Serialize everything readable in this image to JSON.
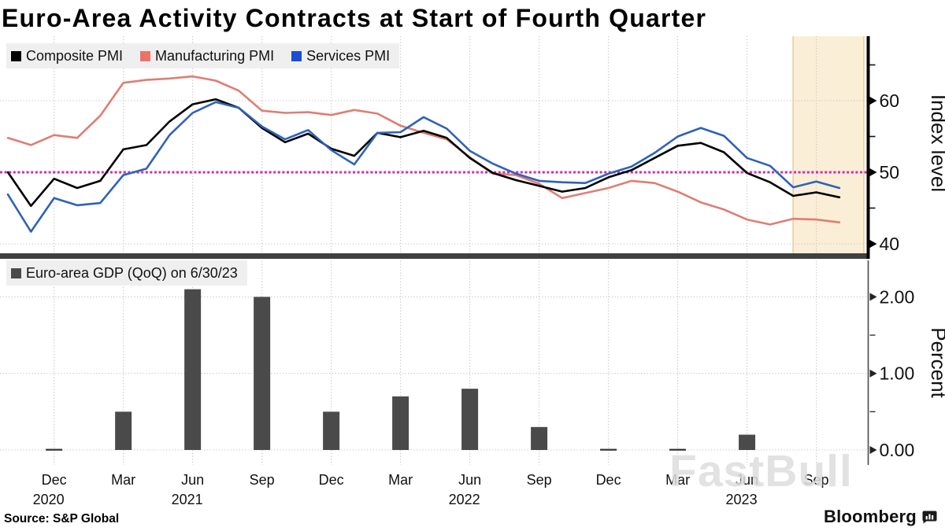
{
  "title": "Euro-Area Activity Contracts at Start of Fourth Quarter",
  "source": "Source: S&P Global",
  "brand": "Bloomberg",
  "watermark": "FastBull",
  "colors": {
    "composite": "#000000",
    "manufacturing": "#df7e73",
    "manufacturing_legend": "#ee7168",
    "services": "#2e62b8",
    "services_legend": "#1c4dd4",
    "gdp_bar": "#4a4a4a",
    "reference_line": "#cf2fb3",
    "highlight_fill": "#faeed6",
    "highlight_border": "#d9bc7a",
    "gridline": "#c6c6c6",
    "divider": "#404040"
  },
  "x_axis": {
    "ticks": [
      {
        "month": "Dec",
        "year": "2020",
        "month_index": 2
      },
      {
        "month": "Mar",
        "month_index": 5
      },
      {
        "month": "Jun",
        "year": "2021",
        "month_index": 8
      },
      {
        "month": "Sep",
        "month_index": 11
      },
      {
        "month": "Dec",
        "month_index": 14
      },
      {
        "month": "Mar",
        "month_index": 17
      },
      {
        "month": "Jun",
        "year": "2022",
        "month_index": 20
      },
      {
        "month": "Sep",
        "month_index": 23
      },
      {
        "month": "Dec",
        "month_index": 26
      },
      {
        "month": "Mar",
        "month_index": 29
      },
      {
        "month": "Jun",
        "year": "2023",
        "month_index": 32
      },
      {
        "month": "Sep",
        "month_index": 35
      }
    ]
  },
  "chart_data": [
    {
      "type": "line",
      "panel": "pmi",
      "ylabel": "Index level",
      "yticks": [
        40,
        50,
        60
      ],
      "yticks_minor": [
        45,
        55,
        65
      ],
      "ylim": [
        38.6,
        69
      ],
      "grid": true,
      "legend_position": "top-left",
      "x": [
        "2020-10",
        "2020-11",
        "2020-12",
        "2021-01",
        "2021-02",
        "2021-03",
        "2021-04",
        "2021-05",
        "2021-06",
        "2021-07",
        "2021-08",
        "2021-09",
        "2021-10",
        "2021-11",
        "2021-12",
        "2022-01",
        "2022-02",
        "2022-03",
        "2022-04",
        "2022-05",
        "2022-06",
        "2022-07",
        "2022-08",
        "2022-09",
        "2022-10",
        "2022-11",
        "2022-12",
        "2023-01",
        "2023-02",
        "2023-03",
        "2023-04",
        "2023-05",
        "2023-06",
        "2023-07",
        "2023-08",
        "2023-09",
        "2023-10"
      ],
      "series": [
        {
          "name": "Composite PMI",
          "color": "#000000",
          "values": [
            50.0,
            45.3,
            49.1,
            47.8,
            48.8,
            53.2,
            53.8,
            57.1,
            59.5,
            60.2,
            59.0,
            56.2,
            54.2,
            55.4,
            53.3,
            52.3,
            55.5,
            54.9,
            55.8,
            54.8,
            52.0,
            49.9,
            48.9,
            48.1,
            47.3,
            47.8,
            49.3,
            50.3,
            52.0,
            53.7,
            54.1,
            52.8,
            49.9,
            48.6,
            46.7,
            47.2,
            46.5
          ]
        },
        {
          "name": "Manufacturing PMI",
          "color": "#ee7168",
          "values": [
            54.8,
            53.8,
            55.2,
            54.8,
            57.9,
            62.5,
            62.9,
            63.1,
            63.4,
            62.8,
            61.4,
            58.6,
            58.3,
            58.4,
            58.0,
            58.7,
            58.2,
            56.5,
            55.5,
            54.6,
            52.1,
            49.8,
            49.6,
            48.4,
            46.4,
            47.1,
            47.8,
            48.8,
            48.5,
            47.3,
            45.8,
            44.8,
            43.4,
            42.7,
            43.5,
            43.4,
            43.0
          ]
        },
        {
          "name": "Services PMI",
          "color": "#1c4dd4",
          "values": [
            46.9,
            41.7,
            46.4,
            45.4,
            45.7,
            49.6,
            50.5,
            55.2,
            58.3,
            59.8,
            59.0,
            56.4,
            54.6,
            55.9,
            53.1,
            51.1,
            55.5,
            55.6,
            57.7,
            56.1,
            53.0,
            51.2,
            49.8,
            48.8,
            48.6,
            48.5,
            49.8,
            50.8,
            52.7,
            55.0,
            56.2,
            55.1,
            52.0,
            50.9,
            47.9,
            48.7,
            47.8
          ]
        }
      ],
      "reference_line": {
        "value": 50,
        "style": "dotted",
        "color": "#cf2fb3"
      },
      "highlight_region": {
        "from": "2023-08",
        "to": "2023-11",
        "fill": "#faeed6"
      }
    },
    {
      "type": "bar",
      "panel": "gdp",
      "legend_label": "Euro-area GDP (QoQ) on 6/30/23",
      "ylabel": "Percent",
      "yticks": [
        "0.00",
        "1.00",
        "2.00"
      ],
      "yticks_minor": [
        0.5,
        1.5
      ],
      "ylim": [
        -0.2,
        2.45
      ],
      "grid": true,
      "categories": [
        "2020-Q4",
        "2021-Q1",
        "2021-Q2",
        "2021-Q3",
        "2021-Q4",
        "2022-Q1",
        "2022-Q2",
        "2022-Q3",
        "2022-Q4",
        "2023-Q1",
        "2023-Q2"
      ],
      "month_index": [
        2,
        5,
        8,
        11,
        14,
        17,
        20,
        23,
        26,
        29,
        32
      ],
      "values": [
        0.0,
        0.5,
        2.1,
        2.0,
        0.5,
        0.7,
        0.8,
        0.3,
        0.0,
        0.0,
        0.2
      ],
      "bar_color": "#4a4a4a"
    }
  ]
}
